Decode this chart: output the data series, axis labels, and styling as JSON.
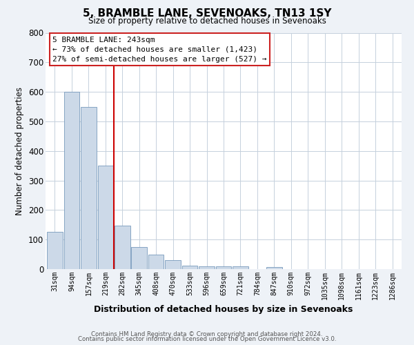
{
  "title": "5, BRAMBLE LANE, SEVENOAKS, TN13 1SY",
  "subtitle": "Size of property relative to detached houses in Sevenoaks",
  "xlabel": "Distribution of detached houses by size in Sevenoaks",
  "ylabel": "Number of detached properties",
  "bar_labels": [
    "31sqm",
    "94sqm",
    "157sqm",
    "219sqm",
    "282sqm",
    "345sqm",
    "408sqm",
    "470sqm",
    "533sqm",
    "596sqm",
    "659sqm",
    "721sqm",
    "784sqm",
    "847sqm",
    "910sqm",
    "972sqm",
    "1035sqm",
    "1098sqm",
    "1161sqm",
    "1223sqm",
    "1286sqm"
  ],
  "bar_values": [
    127,
    600,
    550,
    350,
    148,
    75,
    50,
    30,
    12,
    10,
    10,
    10,
    0,
    7,
    0,
    0,
    0,
    0,
    0,
    0,
    0
  ],
  "bar_color": "#ccd9e8",
  "bar_edge_color": "#7799bb",
  "property_line_x": 3.5,
  "property_line_color": "#cc0000",
  "ylim": [
    0,
    800
  ],
  "yticks": [
    0,
    100,
    200,
    300,
    400,
    500,
    600,
    700,
    800
  ],
  "annotation_box_title": "5 BRAMBLE LANE: 243sqm",
  "annotation_line1": "← 73% of detached houses are smaller (1,423)",
  "annotation_line2": "27% of semi-detached houses are larger (527) →",
  "footer1": "Contains HM Land Registry data © Crown copyright and database right 2024.",
  "footer2": "Contains public sector information licensed under the Open Government Licence v3.0.",
  "bg_color": "#eef2f7",
  "plot_bg_color": "#ffffff",
  "grid_color": "#c5d0dc"
}
